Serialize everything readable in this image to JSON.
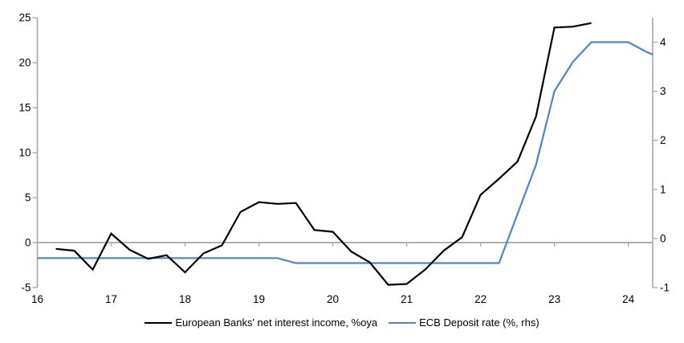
{
  "chart_data": {
    "type": "line",
    "title": "",
    "xlabel": "",
    "ylabel_left": "",
    "ylabel_right": "",
    "grid": "zero-line-only",
    "legend_position": "bottom-center",
    "axis_color": "#a6a6a6",
    "background": "#ffffff",
    "x_axis": {
      "range": [
        16,
        24.33
      ],
      "ticks": [
        16,
        17,
        18,
        19,
        20,
        21,
        22,
        23,
        24
      ]
    },
    "left_axis": {
      "range": [
        -5,
        25
      ],
      "ticks": [
        25,
        20,
        15,
        10,
        5,
        0,
        -5
      ]
    },
    "right_axis": {
      "range": [
        -1,
        4.5
      ],
      "ticks": [
        4,
        3,
        2,
        1,
        0,
        -1
      ]
    },
    "series": [
      {
        "name": "European Banks' net interest income, %oya",
        "axis": "left",
        "color": "#000000",
        "x": [
          16.25,
          16.5,
          16.75,
          17.0,
          17.25,
          17.5,
          17.75,
          18.0,
          18.25,
          18.5,
          18.75,
          19.0,
          19.25,
          19.5,
          19.75,
          20.0,
          20.25,
          20.5,
          20.75,
          21.0,
          21.25,
          21.5,
          21.75,
          22.0,
          22.25,
          22.5,
          22.75,
          23.0,
          23.25,
          23.5
        ],
        "values": [
          -0.7,
          -0.9,
          -3.0,
          1.0,
          -0.8,
          -1.8,
          -1.4,
          -3.3,
          -1.2,
          -0.3,
          3.4,
          4.5,
          4.3,
          4.4,
          1.4,
          1.2,
          -1.0,
          -2.2,
          -4.7,
          -4.6,
          -3.0,
          -0.9,
          0.6,
          5.3,
          7.1,
          9.0,
          14.0,
          23.9,
          24.0,
          24.4
        ]
      },
      {
        "name": "ECB Deposit rate (%, rhs)",
        "axis": "right",
        "color": "#4e85c5",
        "x": [
          16.0,
          16.25,
          16.5,
          16.75,
          17.0,
          17.25,
          17.5,
          17.75,
          18.0,
          18.25,
          18.5,
          18.75,
          19.0,
          19.25,
          19.5,
          19.75,
          20.0,
          20.25,
          20.5,
          20.75,
          21.0,
          21.25,
          21.5,
          21.75,
          22.0,
          22.25,
          22.5,
          22.75,
          23.0,
          23.25,
          23.5,
          23.75,
          24.0,
          24.25,
          24.33
        ],
        "values": [
          -0.4,
          -0.4,
          -0.4,
          -0.4,
          -0.4,
          -0.4,
          -0.4,
          -0.4,
          -0.4,
          -0.4,
          -0.4,
          -0.4,
          -0.4,
          -0.4,
          -0.5,
          -0.5,
          -0.5,
          -0.5,
          -0.5,
          -0.5,
          -0.5,
          -0.5,
          -0.5,
          -0.5,
          -0.5,
          -0.5,
          0.5,
          1.5,
          3.0,
          3.6,
          4.0,
          4.0,
          4.0,
          3.8,
          3.75
        ]
      }
    ]
  }
}
